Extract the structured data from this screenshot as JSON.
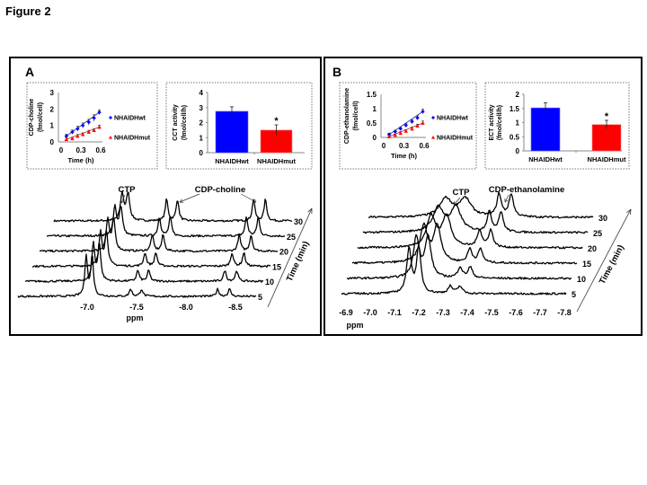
{
  "figure_title": "Figure 2",
  "panels": {
    "A": {
      "label": "A"
    },
    "B": {
      "label": "B"
    }
  },
  "colors": {
    "wt": "#0000ff",
    "mut": "#ff0000",
    "wt_line": "#1a1a9a",
    "mut_line": "#b03030"
  },
  "chart_data": [
    {
      "id": "A-line",
      "type": "scatter",
      "xlabel": "Time (h)",
      "ylabel": "CDP-choline (fmol/cell)",
      "ylabel_lines": [
        "CDP-choline",
        "(fmol/cell)"
      ],
      "xlim": [
        0,
        0.6
      ],
      "ylim": [
        0,
        3
      ],
      "xticks": [
        "0",
        "0.3",
        "0.6"
      ],
      "xtick_values": [
        0,
        0.3,
        0.6
      ],
      "yticks": [
        "0",
        "1",
        "2",
        "3"
      ],
      "ytick_values": [
        0,
        1,
        2,
        3
      ],
      "x": [
        0.08,
        0.17,
        0.25,
        0.33,
        0.42,
        0.5,
        0.58
      ],
      "series": [
        {
          "name": "NHAIDHwt",
          "marker": "diamond",
          "values": [
            0.35,
            0.6,
            0.8,
            1.0,
            1.2,
            1.45,
            1.8
          ],
          "err": [
            0.12,
            0.12,
            0.15,
            0.15,
            0.18,
            0.2,
            0.15
          ]
        },
        {
          "name": "NHAIDHmut",
          "marker": "triangle",
          "values": [
            0.15,
            0.2,
            0.35,
            0.45,
            0.6,
            0.7,
            0.9
          ],
          "err": [
            0.08,
            0.08,
            0.1,
            0.1,
            0.1,
            0.1,
            0.12
          ]
        }
      ],
      "legend": "right"
    },
    {
      "id": "A-bar",
      "type": "bar",
      "ylabel": "CCT activity (fmol/cell/h)",
      "ylabel_lines": [
        "CCT  activity",
        "(fmol/cell/h)"
      ],
      "ylim": [
        0,
        4
      ],
      "yticks": [
        "0",
        "1",
        "2",
        "3",
        "4"
      ],
      "ytick_values": [
        0,
        1,
        2,
        3,
        4
      ],
      "categories": [
        "NHAIDHwt",
        "NHAIDHmut"
      ],
      "values": [
        2.75,
        1.5
      ],
      "err": [
        0.3,
        0.35
      ],
      "annotations": [
        {
          "category": "NHAIDHmut",
          "text": "*"
        }
      ]
    },
    {
      "id": "A-spectra",
      "type": "line",
      "xlabel": "ppm",
      "ztitle": "Time (min)",
      "xlim": [
        -6.77,
        -8.65
      ],
      "xticks": [
        "-7.0",
        "-7.5",
        "-8.0",
        "-8.5"
      ],
      "xtick_values": [
        -7.0,
        -7.5,
        -8.0,
        -8.5
      ],
      "times": [
        "5",
        "10",
        "15",
        "20",
        "25",
        "30"
      ],
      "peaks": [
        {
          "name": "CTP",
          "ppm": [
            -6.99,
            -7.05
          ],
          "intensity": [
            45,
            42,
            38,
            35,
            32,
            30
          ]
        },
        {
          "name": "CDP-choline",
          "ppm": [
            -7.44,
            -7.55,
            -8.32,
            -8.44
          ],
          "intensity": [
            8,
            12,
            15,
            18,
            21,
            24
          ]
        }
      ],
      "annotations": [
        {
          "text": "CTP"
        },
        {
          "text": "CDP-choline"
        }
      ]
    },
    {
      "id": "B-line",
      "type": "scatter",
      "xlabel": "Time (h)",
      "ylabel": "CDP-ethanolamine (fmol/cell)",
      "ylabel_lines": [
        "CDP-ethanolamine",
        "(fmol/cell)"
      ],
      "xlim": [
        0,
        0.6
      ],
      "ylim": [
        0,
        1.5
      ],
      "xticks": [
        "0",
        "0.3",
        "0.6"
      ],
      "xtick_values": [
        0,
        0.3,
        0.6
      ],
      "yticks": [
        "0",
        "0.5",
        "1",
        "1.5"
      ],
      "ytick_values": [
        0,
        0.5,
        1,
        1.5
      ],
      "x": [
        0.08,
        0.17,
        0.25,
        0.33,
        0.42,
        0.5,
        0.58
      ],
      "series": [
        {
          "name": "NHAIDHwt",
          "marker": "diamond",
          "values": [
            0.1,
            0.2,
            0.3,
            0.42,
            0.55,
            0.68,
            0.9
          ],
          "err": [
            0.05,
            0.05,
            0.05,
            0.06,
            0.06,
            0.07,
            0.08
          ]
        },
        {
          "name": "NHAIDHmut",
          "marker": "triangle",
          "values": [
            0.03,
            0.08,
            0.15,
            0.22,
            0.3,
            0.4,
            0.5
          ],
          "err": [
            0.04,
            0.04,
            0.05,
            0.05,
            0.06,
            0.06,
            0.07
          ]
        }
      ],
      "legend": "right"
    },
    {
      "id": "B-bar",
      "type": "bar",
      "ylabel": "ECT activity (fmol/cell/h)",
      "ylabel_lines": [
        "ECT activity",
        "(fmol/cell/h)"
      ],
      "ylim": [
        0,
        2
      ],
      "yticks": [
        "0",
        "0.5",
        "1",
        "1.5",
        "2"
      ],
      "ytick_values": [
        0,
        0.5,
        1,
        1.5,
        2
      ],
      "categories": [
        "NHAIDHwt",
        "NHAIDHmut"
      ],
      "values": [
        1.52,
        0.93
      ],
      "err": [
        0.18,
        0.15
      ],
      "annotations": [
        {
          "category": "NHAIDHmut",
          "text": "*"
        }
      ]
    },
    {
      "id": "B-spectra",
      "type": "line",
      "xlabel": "ppm",
      "ztitle": "Time (min)",
      "xlim": [
        -6.85,
        -7.82
      ],
      "xticks": [
        "-6.9",
        "-7.0",
        "-7.1",
        "-7.2",
        "-7.3",
        "-7.4",
        "-7.5",
        "-7.6",
        "-7.7",
        "-7.8"
      ],
      "xtick_values": [
        -6.9,
        -7.0,
        -7.1,
        -7.2,
        -7.3,
        -7.4,
        -7.5,
        -7.6,
        -7.7,
        -7.8
      ],
      "times": [
        "5",
        "10",
        "15",
        "20",
        "25",
        "30"
      ],
      "peaks": [
        {
          "name": "CTP",
          "ppm_start": [
            -7.16,
            -7.2
          ],
          "ppm_end": [
            -7.2,
            -7.28
          ],
          "intensity": [
            50,
            45,
            40,
            34,
            27,
            20
          ]
        },
        {
          "name": "CDP-ethanolamine",
          "ppm_start": [
            -7.33,
            -7.37
          ],
          "ppm_end": [
            -7.42,
            -7.47
          ],
          "intensity": [
            8,
            12,
            15,
            19,
            22,
            25
          ]
        }
      ],
      "annotations": [
        {
          "text": "CTP"
        },
        {
          "text": "CDP-ethanolamine"
        }
      ]
    }
  ]
}
